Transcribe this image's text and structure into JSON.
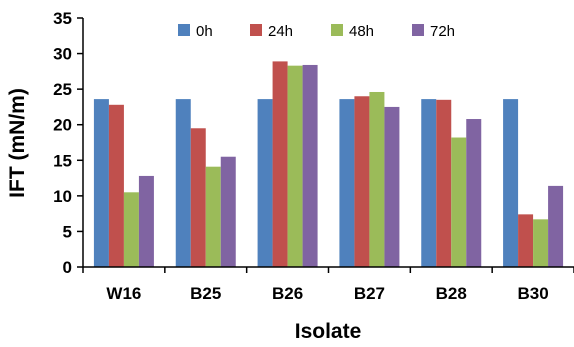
{
  "chart_data": {
    "type": "bar",
    "xlabel": "Isolate",
    "ylabel": "IFT (mN/m)",
    "categories": [
      "W16",
      "B25",
      "B26",
      "B27",
      "B28",
      "B30"
    ],
    "ylim": [
      0,
      35
    ],
    "yticks": [
      0,
      5,
      10,
      15,
      20,
      25,
      30,
      35
    ],
    "grid": false,
    "legend_position": "top",
    "series": [
      {
        "name": "0h",
        "color": "#4F81BD",
        "values": [
          23.6,
          23.6,
          23.6,
          23.6,
          23.6,
          23.6
        ]
      },
      {
        "name": "24h",
        "color": "#C0504D",
        "values": [
          22.8,
          19.5,
          28.9,
          24.0,
          23.5,
          7.4
        ]
      },
      {
        "name": "48h",
        "color": "#9BBB59",
        "values": [
          10.5,
          14.1,
          28.3,
          24.6,
          18.2,
          6.7
        ]
      },
      {
        "name": "72h",
        "color": "#8064A2",
        "values": [
          12.8,
          15.5,
          28.4,
          22.5,
          20.8,
          11.4
        ]
      }
    ]
  }
}
